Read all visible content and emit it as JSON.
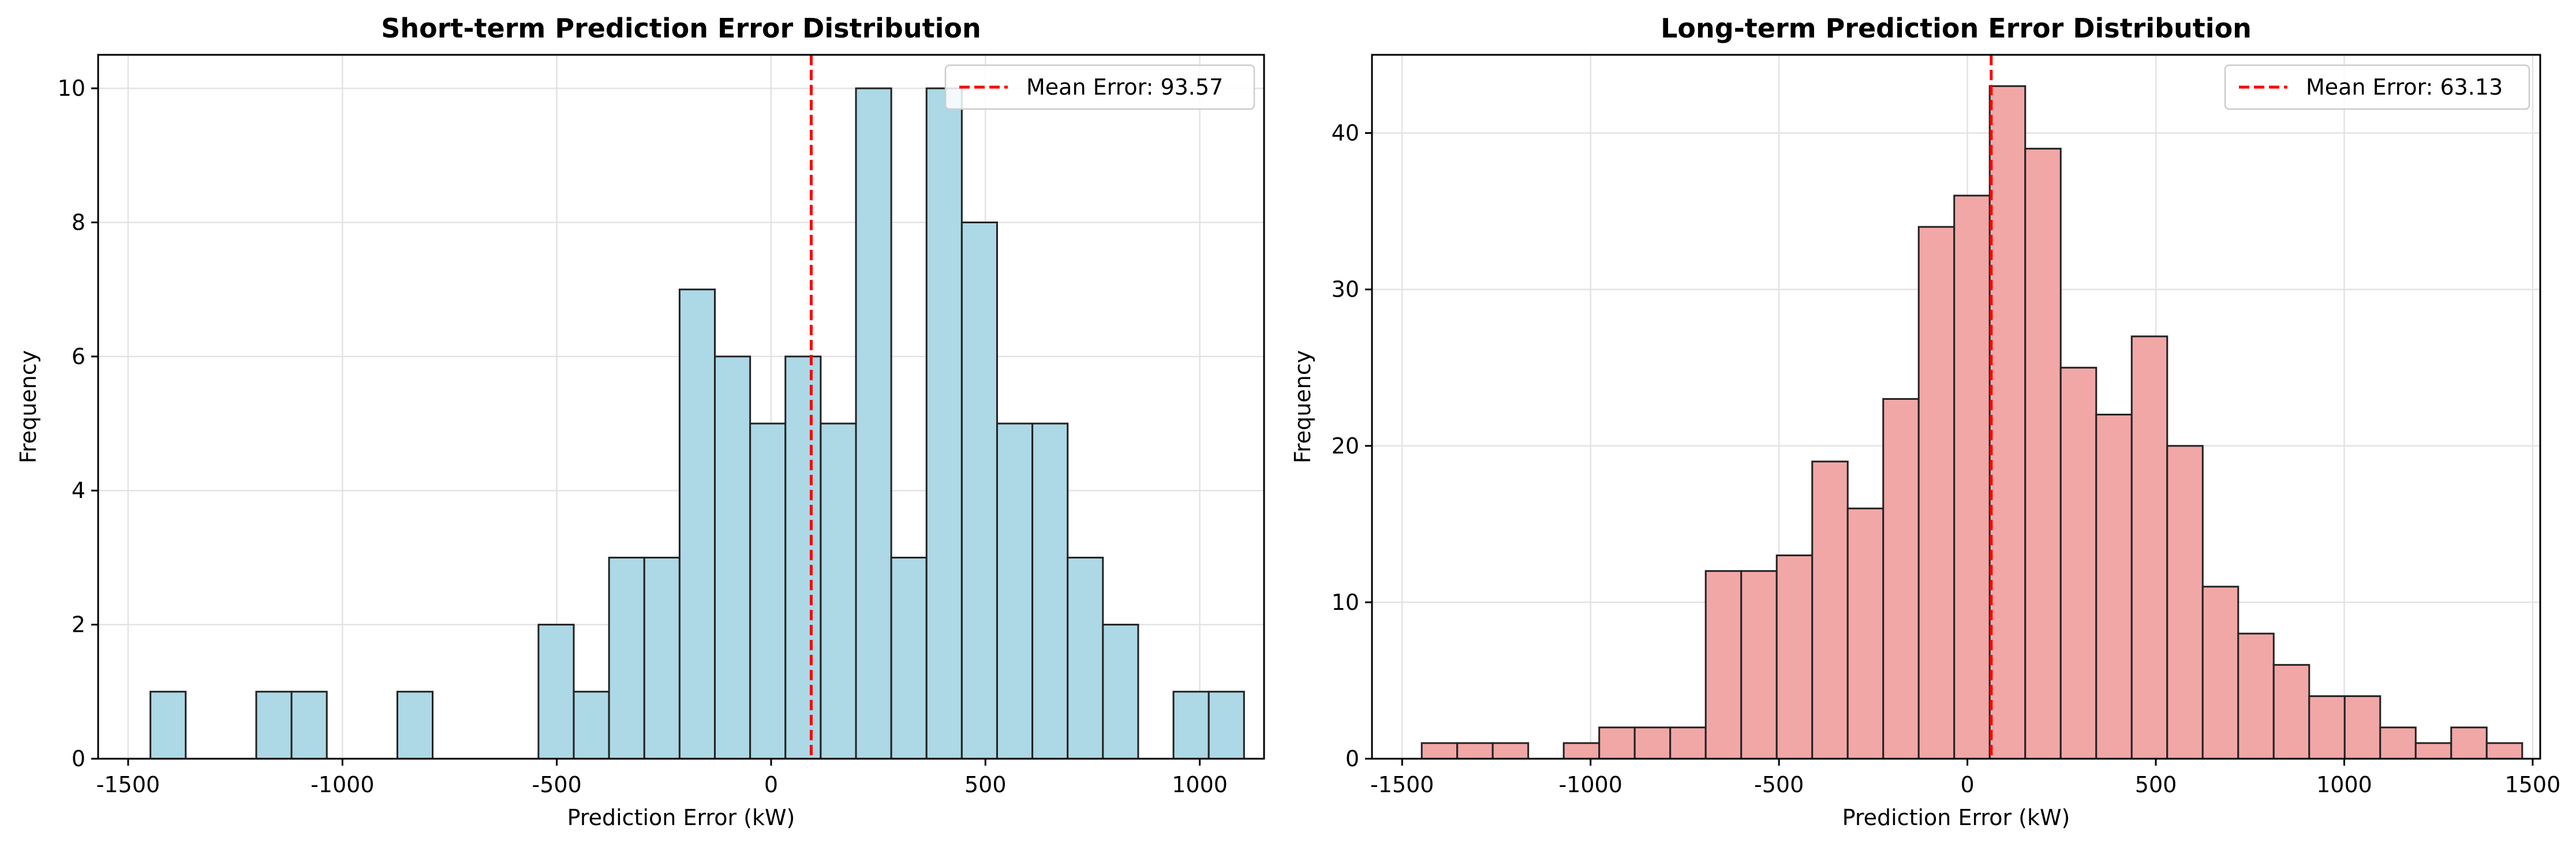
{
  "chart_data": [
    {
      "type": "histogram",
      "title": "Short-term Prediction Error Distribution",
      "xlabel": "Prediction Error (kW)",
      "ylabel": "Frequency",
      "xlim": [
        -1570,
        1150
      ],
      "ylim": [
        0,
        10.5
      ],
      "xticks": [
        -1500,
        -1000,
        -500,
        0,
        500,
        1000
      ],
      "xtick_labels": [
        "-1500",
        "-1000",
        "-500",
        "0",
        "500",
        "1000"
      ],
      "yticks": [
        0,
        2,
        4,
        6,
        8,
        10
      ],
      "ytick_labels": [
        "0",
        "2",
        "4",
        "6",
        "8",
        "10"
      ],
      "grid": true,
      "bin_start": -1448,
      "bin_width": 82.3,
      "bin_counts": [
        1,
        0,
        0,
        1,
        1,
        0,
        0,
        1,
        0,
        0,
        0,
        2,
        1,
        3,
        3,
        7,
        6,
        5,
        6,
        5,
        10,
        3,
        10,
        8,
        5,
        5,
        3,
        2,
        0,
        1,
        1
      ],
      "bar_color": "#add8e6",
      "edge_color": "#222222",
      "mean_line": {
        "value": 93.57,
        "color": "#ff0000",
        "style": "dashed"
      },
      "legend": {
        "position": "top-right",
        "entries": [
          "Mean Error: 93.57"
        ]
      }
    },
    {
      "type": "histogram",
      "title": "Long-term Prediction Error Distribution",
      "xlabel": "Prediction Error (kW)",
      "ylabel": "Frequency",
      "xlim": [
        -1580,
        1520
      ],
      "ylim": [
        0,
        45
      ],
      "xticks": [
        -1500,
        -1000,
        -500,
        0,
        500,
        1000,
        1500
      ],
      "xtick_labels": [
        "-1500",
        "-1000",
        "-500",
        "0",
        "500",
        "1000",
        "1500"
      ],
      "yticks": [
        0,
        10,
        20,
        30,
        40
      ],
      "ytick_labels": [
        "0",
        "10",
        "20",
        "30",
        "40"
      ],
      "grid": true,
      "bin_start": -1448,
      "bin_width": 94.2,
      "bin_counts": [
        1,
        1,
        1,
        0,
        1,
        2,
        2,
        2,
        12,
        12,
        13,
        19,
        16,
        23,
        34,
        36,
        43,
        39,
        25,
        22,
        27,
        20,
        11,
        8,
        6,
        4,
        4,
        2,
        1,
        2,
        1
      ],
      "bar_color": "#f2a7a7",
      "edge_color": "#222222",
      "mean_line": {
        "value": 63.13,
        "color": "#ff0000",
        "style": "dashed"
      },
      "legend": {
        "position": "top-right",
        "entries": [
          "Mean Error: 63.13"
        ]
      }
    }
  ]
}
